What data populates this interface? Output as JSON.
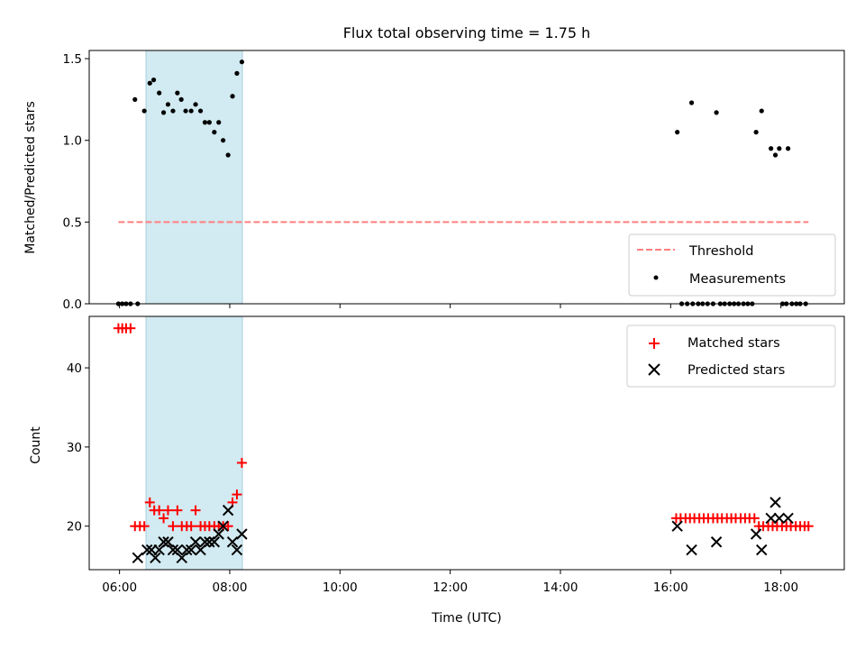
{
  "chart_data": [
    {
      "type": "scatter",
      "title": "Flux total observing time = 1.75 h",
      "ylabel": "Matched/Predicted stars",
      "xlabel": "",
      "xlim": [
        5.45,
        19.15
      ],
      "ylim": [
        0,
        1.55
      ],
      "yticks": [
        0.0,
        0.5,
        1.0,
        1.5
      ],
      "ytick_labels": [
        "0.0",
        "0.5",
        "1.0",
        "1.5"
      ],
      "xticks": [
        6,
        8,
        10,
        12,
        14,
        16,
        18
      ],
      "shaded_span": [
        6.48,
        8.23
      ],
      "shaded_color": "#add8e6",
      "legend_position": "lower right",
      "threshold": {
        "name": "Threshold",
        "x": [
          5.98,
          18.5
        ],
        "y": 0.5,
        "color": "#ff7f7f",
        "style": "dashed"
      },
      "series": [
        {
          "name": "Measurements",
          "color": "#000000",
          "marker": "dot",
          "points": [
            [
              5.98,
              0
            ],
            [
              6.05,
              0
            ],
            [
              6.12,
              0
            ],
            [
              6.2,
              0
            ],
            [
              6.33,
              0
            ],
            [
              6.28,
              1.25
            ],
            [
              6.45,
              1.18
            ],
            [
              6.55,
              1.35
            ],
            [
              6.62,
              1.37
            ],
            [
              6.72,
              1.29
            ],
            [
              6.8,
              1.17
            ],
            [
              6.88,
              1.22
            ],
            [
              6.97,
              1.18
            ],
            [
              7.05,
              1.29
            ],
            [
              7.12,
              1.25
            ],
            [
              7.2,
              1.18
            ],
            [
              7.3,
              1.18
            ],
            [
              7.38,
              1.22
            ],
            [
              7.47,
              1.18
            ],
            [
              7.55,
              1.11
            ],
            [
              7.63,
              1.11
            ],
            [
              7.72,
              1.05
            ],
            [
              7.8,
              1.11
            ],
            [
              7.88,
              1.0
            ],
            [
              7.97,
              0.91
            ],
            [
              8.05,
              1.27
            ],
            [
              8.13,
              1.41
            ],
            [
              8.22,
              1.48
            ],
            [
              16.12,
              1.05
            ],
            [
              16.38,
              1.23
            ],
            [
              16.83,
              1.17
            ],
            [
              17.55,
              1.05
            ],
            [
              17.65,
              1.18
            ],
            [
              17.82,
              0.95
            ],
            [
              17.9,
              0.91
            ],
            [
              17.97,
              0.95
            ],
            [
              18.13,
              0.95
            ],
            [
              16.2,
              0
            ],
            [
              16.3,
              0
            ],
            [
              16.4,
              0
            ],
            [
              16.5,
              0
            ],
            [
              16.58,
              0
            ],
            [
              16.67,
              0
            ],
            [
              16.77,
              0
            ],
            [
              16.9,
              0
            ],
            [
              16.98,
              0
            ],
            [
              17.07,
              0
            ],
            [
              17.15,
              0
            ],
            [
              17.23,
              0
            ],
            [
              17.32,
              0
            ],
            [
              17.4,
              0
            ],
            [
              17.48,
              0
            ],
            [
              18.03,
              0
            ],
            [
              18.1,
              0
            ],
            [
              18.2,
              0
            ],
            [
              18.28,
              0
            ],
            [
              18.35,
              0
            ],
            [
              18.45,
              0
            ]
          ]
        }
      ]
    },
    {
      "type": "scatter",
      "title": "",
      "xlabel": "Time (UTC)",
      "ylabel": "Count",
      "xlim": [
        5.45,
        19.15
      ],
      "ylim": [
        14.5,
        46.5
      ],
      "yticks": [
        20,
        30,
        40
      ],
      "ytick_labels": [
        "20",
        "30",
        "40"
      ],
      "xticks": [
        6,
        8,
        10,
        12,
        14,
        16,
        18
      ],
      "xtick_labels": [
        "06:00",
        "08:00",
        "10:00",
        "12:00",
        "14:00",
        "16:00",
        "18:00"
      ],
      "shaded_span": [
        6.48,
        8.23
      ],
      "shaded_color": "#add8e6",
      "legend_position": "upper right",
      "series": [
        {
          "name": "Matched stars",
          "color": "#ff0000",
          "marker": "plus",
          "points": [
            [
              5.98,
              45
            ],
            [
              6.05,
              45
            ],
            [
              6.12,
              45
            ],
            [
              6.2,
              45
            ],
            [
              6.28,
              20
            ],
            [
              6.37,
              20
            ],
            [
              6.45,
              20
            ],
            [
              6.55,
              23
            ],
            [
              6.63,
              22
            ],
            [
              6.72,
              22
            ],
            [
              6.8,
              21
            ],
            [
              6.88,
              22
            ],
            [
              6.97,
              20
            ],
            [
              7.05,
              22
            ],
            [
              7.13,
              20
            ],
            [
              7.22,
              20
            ],
            [
              7.3,
              20
            ],
            [
              7.38,
              22
            ],
            [
              7.47,
              20
            ],
            [
              7.55,
              20
            ],
            [
              7.63,
              20
            ],
            [
              7.72,
              20
            ],
            [
              7.8,
              20
            ],
            [
              7.88,
              20
            ],
            [
              7.97,
              20
            ],
            [
              8.05,
              23
            ],
            [
              8.13,
              24
            ],
            [
              8.22,
              28
            ],
            [
              16.1,
              21
            ],
            [
              16.18,
              21
            ],
            [
              16.27,
              21
            ],
            [
              16.35,
              21
            ],
            [
              16.43,
              21
            ],
            [
              16.52,
              21
            ],
            [
              16.6,
              21
            ],
            [
              16.68,
              21
            ],
            [
              16.77,
              21
            ],
            [
              16.85,
              21
            ],
            [
              16.93,
              21
            ],
            [
              17.02,
              21
            ],
            [
              17.1,
              21
            ],
            [
              17.18,
              21
            ],
            [
              17.27,
              21
            ],
            [
              17.35,
              21
            ],
            [
              17.43,
              21
            ],
            [
              17.52,
              21
            ],
            [
              17.6,
              20
            ],
            [
              17.68,
              20
            ],
            [
              17.77,
              20
            ],
            [
              17.85,
              20
            ],
            [
              17.93,
              20
            ],
            [
              18.02,
              20
            ],
            [
              18.1,
              20
            ],
            [
              18.18,
              20
            ],
            [
              18.27,
              20
            ],
            [
              18.35,
              20
            ],
            [
              18.43,
              20
            ],
            [
              18.5,
              20
            ]
          ]
        },
        {
          "name": "Predicted stars",
          "color": "#000000",
          "marker": "x",
          "points": [
            [
              6.33,
              16
            ],
            [
              6.5,
              17
            ],
            [
              6.58,
              17
            ],
            [
              6.65,
              16
            ],
            [
              6.72,
              17
            ],
            [
              6.8,
              18
            ],
            [
              6.88,
              18
            ],
            [
              6.97,
              17
            ],
            [
              7.05,
              17
            ],
            [
              7.13,
              16
            ],
            [
              7.22,
              17
            ],
            [
              7.3,
              17
            ],
            [
              7.38,
              18
            ],
            [
              7.47,
              17
            ],
            [
              7.55,
              18
            ],
            [
              7.63,
              18
            ],
            [
              7.72,
              18
            ],
            [
              7.8,
              19
            ],
            [
              7.88,
              20
            ],
            [
              7.97,
              22
            ],
            [
              8.05,
              18
            ],
            [
              8.13,
              17
            ],
            [
              8.22,
              19
            ],
            [
              16.12,
              20
            ],
            [
              16.38,
              17
            ],
            [
              16.83,
              18
            ],
            [
              17.55,
              19
            ],
            [
              17.65,
              17
            ],
            [
              17.82,
              21
            ],
            [
              17.9,
              23
            ],
            [
              17.97,
              21
            ],
            [
              18.13,
              21
            ]
          ]
        }
      ]
    }
  ]
}
